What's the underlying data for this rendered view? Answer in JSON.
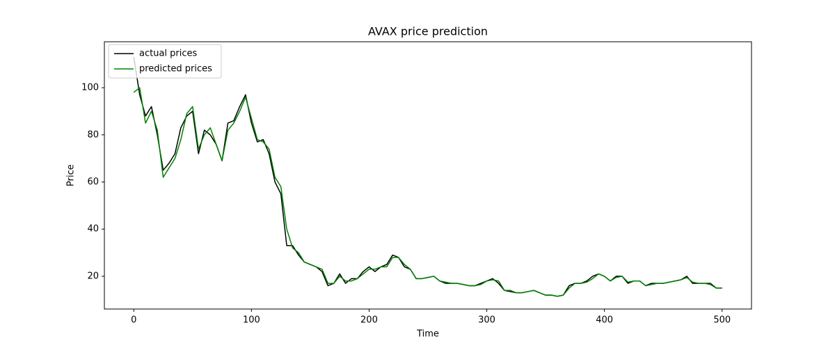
{
  "chart_data": {
    "type": "line",
    "title": "AVAX price prediction",
    "x_label": "Time",
    "y_label": "Price",
    "x": [
      0,
      5,
      10,
      15,
      20,
      25,
      30,
      35,
      40,
      45,
      50,
      55,
      60,
      65,
      70,
      75,
      80,
      85,
      90,
      95,
      100,
      105,
      110,
      115,
      120,
      125,
      130,
      135,
      140,
      145,
      150,
      155,
      160,
      165,
      170,
      175,
      180,
      185,
      190,
      195,
      200,
      205,
      210,
      215,
      220,
      225,
      230,
      235,
      240,
      245,
      250,
      255,
      260,
      265,
      270,
      275,
      280,
      285,
      290,
      295,
      300,
      305,
      310,
      315,
      320,
      325,
      330,
      335,
      340,
      345,
      350,
      355,
      360,
      365,
      370,
      375,
      380,
      385,
      390,
      395,
      400,
      405,
      410,
      415,
      420,
      425,
      430,
      435,
      440,
      445,
      450,
      455,
      460,
      465,
      470,
      475,
      480,
      485,
      490,
      495,
      500
    ],
    "series": [
      {
        "name": "actual prices",
        "color": "#000000",
        "values": [
          113,
          97,
          88,
          92,
          80,
          65,
          68,
          72,
          83,
          88,
          90,
          72,
          82,
          80,
          76,
          69,
          85,
          86,
          92,
          97,
          85,
          77,
          78,
          72,
          60,
          55,
          33,
          33,
          29,
          26,
          25,
          24,
          22,
          16,
          17,
          21,
          17,
          19,
          19,
          22,
          24,
          22,
          24,
          25,
          29,
          28,
          24,
          23,
          19,
          19,
          19.5,
          20,
          18,
          17,
          17,
          17,
          16.5,
          16,
          16,
          17,
          18,
          19,
          17,
          14,
          13.5,
          13,
          13,
          13.5,
          14,
          13,
          12,
          12,
          11.5,
          12,
          16,
          17,
          17,
          18,
          20,
          21,
          20,
          18,
          20,
          20,
          17,
          18,
          18,
          16,
          17,
          17,
          17,
          17.5,
          18,
          18.5,
          20,
          17,
          17,
          17,
          17,
          15,
          15
        ]
      },
      {
        "name": "predicted prices",
        "color": "#008000",
        "values": [
          98,
          100,
          85,
          90,
          82,
          62,
          66,
          70,
          78,
          89,
          92,
          74,
          80,
          83,
          76,
          69,
          82,
          85,
          90,
          96,
          87,
          78,
          77,
          74,
          62,
          58,
          40,
          32,
          30,
          26,
          25,
          24,
          23,
          17,
          17,
          20,
          18,
          18,
          19,
          21,
          23,
          23,
          24,
          24,
          28,
          28,
          25,
          23,
          19,
          19,
          19.5,
          20,
          18,
          17.5,
          17,
          17,
          16.5,
          16,
          16,
          16.5,
          18,
          18.5,
          18,
          14,
          14,
          13,
          13,
          13.5,
          14,
          13,
          12,
          12,
          11.5,
          12,
          15,
          17,
          17,
          17.5,
          19,
          21,
          20,
          18,
          19.5,
          20,
          17.5,
          18,
          18,
          16,
          16.5,
          17,
          17,
          17.5,
          18,
          18.5,
          19.5,
          17.5,
          17,
          17,
          16.5,
          15,
          15
        ]
      }
    ],
    "xlim": [
      -25,
      525
    ],
    "ylim": [
      6.1,
      119.5
    ],
    "xticks": [
      0,
      100,
      200,
      300,
      400,
      500
    ],
    "yticks": [
      20,
      40,
      60,
      80,
      100
    ],
    "legend": "upper left"
  }
}
